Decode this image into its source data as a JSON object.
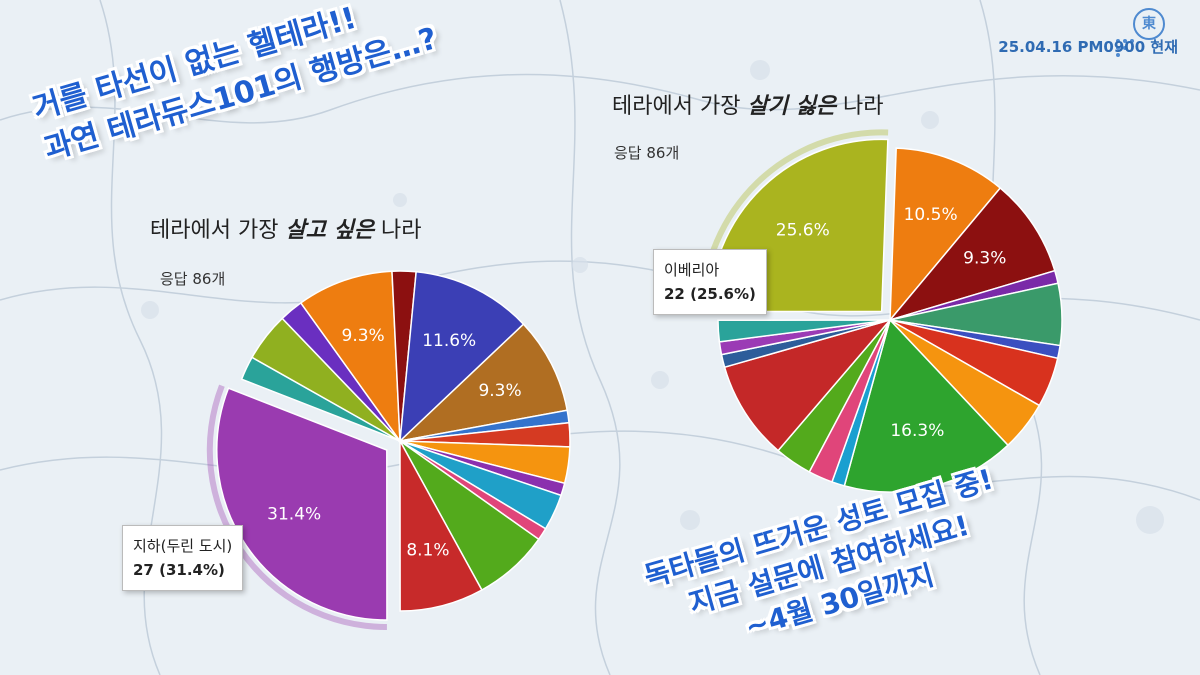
{
  "date_text": "25.04.16 PM0900 현재",
  "logo_glyph": "東",
  "headline_top": [
    "거를 타선이 없는 헬테라!!",
    "과연 테라듀스101의 행방은…?"
  ],
  "headline_bottom": [
    "독타들의 뜨거운 성토 모집 중!",
    "지금 설문에 참여하세요!",
    "~4월 30일까지"
  ],
  "colors": {
    "headline": "#1f5fd0",
    "date": "#2f6bb3"
  },
  "chart_data": [
    {
      "type": "pie",
      "title_parts": [
        "테라에서 가장 ",
        "살고 싶은",
        " 나라"
      ],
      "subtitle": "응답 86개",
      "highlight_index": 0,
      "tooltip": {
        "label": "지하(두린 도시)",
        "value": "27 (31.4%)"
      },
      "slices": [
        {
          "value": 31.4,
          "color": "#9a3bb0",
          "label": "31.4%"
        },
        {
          "value": 2.3,
          "color": "#2aa39a",
          "label": ""
        },
        {
          "value": 4.7,
          "color": "#90b020",
          "label": ""
        },
        {
          "value": 2.3,
          "color": "#6a2fc0",
          "label": ""
        },
        {
          "value": 9.3,
          "color": "#ee7d10",
          "label": "9.3%"
        },
        {
          "value": 2.3,
          "color": "#8c1010",
          "label": ""
        },
        {
          "value": 11.6,
          "color": "#3b3fb5",
          "label": "11.6%"
        },
        {
          "value": 9.3,
          "color": "#b06e22",
          "label": "9.3%"
        },
        {
          "value": 1.2,
          "color": "#3473cc",
          "label": ""
        },
        {
          "value": 2.3,
          "color": "#d53a22",
          "label": ""
        },
        {
          "value": 3.5,
          "color": "#f5940f",
          "label": ""
        },
        {
          "value": 1.2,
          "color": "#8b2fae",
          "label": ""
        },
        {
          "value": 3.5,
          "color": "#1fa0c8",
          "label": ""
        },
        {
          "value": 1.2,
          "color": "#e0457a",
          "label": ""
        },
        {
          "value": 7.3,
          "color": "#53aa1c",
          "label": ""
        },
        {
          "value": 8.1,
          "color": "#c72a2a",
          "label": "8.1%"
        }
      ]
    },
    {
      "type": "pie",
      "title_parts": [
        "테라에서 가장 ",
        "살기 싫은",
        " 나라"
      ],
      "subtitle": "응답 86개",
      "highlight_index": 0,
      "tooltip": {
        "label": "이베리아",
        "value": "22 (25.6%)"
      },
      "slices": [
        {
          "value": 25.6,
          "color": "#aab41f",
          "label": "25.6%"
        },
        {
          "value": 10.5,
          "color": "#ee7d10",
          "label": "10.5%"
        },
        {
          "value": 9.3,
          "color": "#8c1010",
          "label": "9.3%"
        },
        {
          "value": 1.2,
          "color": "#7a2aa8",
          "label": ""
        },
        {
          "value": 5.8,
          "color": "#3a9a6a",
          "label": ""
        },
        {
          "value": 1.2,
          "color": "#3b4fc0",
          "label": ""
        },
        {
          "value": 4.7,
          "color": "#d8321e",
          "label": ""
        },
        {
          "value": 4.7,
          "color": "#f5940f",
          "label": ""
        },
        {
          "value": 16.3,
          "color": "#2ea42e",
          "label": "16.3%"
        },
        {
          "value": 1.2,
          "color": "#1a9fd0",
          "label": ""
        },
        {
          "value": 2.3,
          "color": "#e0457a",
          "label": ""
        },
        {
          "value": 3.5,
          "color": "#53aa1c",
          "label": ""
        },
        {
          "value": 9.3,
          "color": "#c42828",
          "label": ""
        },
        {
          "value": 1.2,
          "color": "#2d5d9a",
          "label": ""
        },
        {
          "value": 1.2,
          "color": "#9b3bb5",
          "label": ""
        },
        {
          "value": 2.0,
          "color": "#2aa39a",
          "label": ""
        }
      ]
    }
  ]
}
